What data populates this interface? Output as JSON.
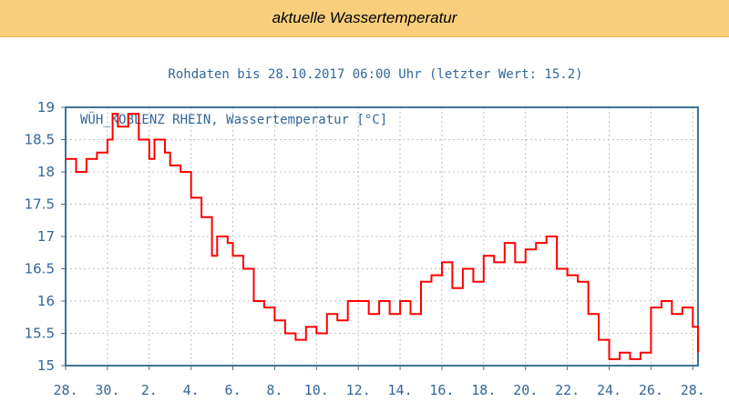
{
  "header": {
    "title": "aktuelle Wassertemperatur"
  },
  "chart_data": {
    "type": "line",
    "title": "Rohdaten bis 28.10.2017 06:00 Uhr (letzter Wert: 15.2)",
    "series_label": "WÜH_KOBLENZ RHEIN, Wassertemperatur [°C]",
    "xlabel": "",
    "ylabel": "",
    "ylim": [
      15,
      19
    ],
    "yticks": [
      "19",
      "18.5",
      "18",
      "17.5",
      "17",
      "16.5",
      "16",
      "15.5",
      "15"
    ],
    "xlim": [
      "2017-09-28",
      "2017-10-28 06:00"
    ],
    "xticks": [
      "28.",
      "30.",
      "2.",
      "4.",
      "6.",
      "8.",
      "10.",
      "12.",
      "14.",
      "16.",
      "18.",
      "20.",
      "22.",
      "24.",
      "26.",
      "28."
    ],
    "grid": true,
    "colors": {
      "line": "#ff0000",
      "axis": "#3f7396",
      "text": "#336699",
      "grid": "#c0c0c0",
      "header_bg": "#f9cf7d"
    },
    "series": [
      {
        "values": [
          [
            "2017-09-28 00:00",
            18.2
          ],
          [
            "2017-09-28 12:00",
            18.0
          ],
          [
            "2017-09-29 00:00",
            18.2
          ],
          [
            "2017-09-29 12:00",
            18.3
          ],
          [
            "2017-09-30 00:00",
            18.5
          ],
          [
            "2017-09-30 06:00",
            18.9
          ],
          [
            "2017-09-30 12:00",
            18.7
          ],
          [
            "2017-10-01 00:00",
            18.9
          ],
          [
            "2017-10-01 12:00",
            18.5
          ],
          [
            "2017-10-02 00:00",
            18.2
          ],
          [
            "2017-10-02 06:00",
            18.5
          ],
          [
            "2017-10-02 18:00",
            18.3
          ],
          [
            "2017-10-03 00:00",
            18.1
          ],
          [
            "2017-10-03 12:00",
            18.0
          ],
          [
            "2017-10-04 00:00",
            17.6
          ],
          [
            "2017-10-04 12:00",
            17.3
          ],
          [
            "2017-10-05 00:00",
            16.7
          ],
          [
            "2017-10-05 06:00",
            17.0
          ],
          [
            "2017-10-05 18:00",
            16.9
          ],
          [
            "2017-10-06 00:00",
            16.7
          ],
          [
            "2017-10-06 12:00",
            16.5
          ],
          [
            "2017-10-07 00:00",
            16.0
          ],
          [
            "2017-10-07 12:00",
            15.9
          ],
          [
            "2017-10-08 00:00",
            15.7
          ],
          [
            "2017-10-08 12:00",
            15.5
          ],
          [
            "2017-10-09 00:00",
            15.4
          ],
          [
            "2017-10-09 12:00",
            15.6
          ],
          [
            "2017-10-10 00:00",
            15.5
          ],
          [
            "2017-10-10 12:00",
            15.8
          ],
          [
            "2017-10-11 00:00",
            15.7
          ],
          [
            "2017-10-11 12:00",
            16.0
          ],
          [
            "2017-10-12 00:00",
            16.0
          ],
          [
            "2017-10-12 12:00",
            15.8
          ],
          [
            "2017-10-13 00:00",
            16.0
          ],
          [
            "2017-10-13 12:00",
            15.8
          ],
          [
            "2017-10-14 00:00",
            16.0
          ],
          [
            "2017-10-14 12:00",
            15.8
          ],
          [
            "2017-10-15 00:00",
            16.3
          ],
          [
            "2017-10-15 12:00",
            16.4
          ],
          [
            "2017-10-16 00:00",
            16.6
          ],
          [
            "2017-10-16 12:00",
            16.2
          ],
          [
            "2017-10-17 00:00",
            16.5
          ],
          [
            "2017-10-17 12:00",
            16.3
          ],
          [
            "2017-10-18 00:00",
            16.7
          ],
          [
            "2017-10-18 12:00",
            16.6
          ],
          [
            "2017-10-19 00:00",
            16.9
          ],
          [
            "2017-10-19 12:00",
            16.6
          ],
          [
            "2017-10-20 00:00",
            16.8
          ],
          [
            "2017-10-20 12:00",
            16.9
          ],
          [
            "2017-10-21 00:00",
            17.0
          ],
          [
            "2017-10-21 12:00",
            16.5
          ],
          [
            "2017-10-22 00:00",
            16.4
          ],
          [
            "2017-10-22 12:00",
            16.3
          ],
          [
            "2017-10-23 00:00",
            15.8
          ],
          [
            "2017-10-23 12:00",
            15.4
          ],
          [
            "2017-10-24 00:00",
            15.1
          ],
          [
            "2017-10-24 12:00",
            15.2
          ],
          [
            "2017-10-25 00:00",
            15.1
          ],
          [
            "2017-10-25 12:00",
            15.2
          ],
          [
            "2017-10-26 00:00",
            15.9
          ],
          [
            "2017-10-26 12:00",
            16.0
          ],
          [
            "2017-10-27 00:00",
            15.8
          ],
          [
            "2017-10-27 12:00",
            15.9
          ],
          [
            "2017-10-28 00:00",
            15.6
          ],
          [
            "2017-10-28 06:00",
            15.2
          ]
        ]
      }
    ]
  }
}
